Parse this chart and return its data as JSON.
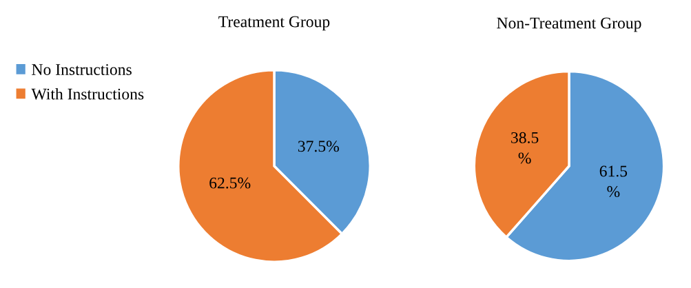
{
  "chart_data": [
    {
      "type": "pie",
      "title": "Treatment Group",
      "categories": [
        "No Instructions",
        "With Instructions"
      ],
      "values": [
        37.5,
        62.5
      ],
      "colors": [
        "#5b9bd5",
        "#ed7d31"
      ],
      "value_labels": [
        "37.5%",
        "62.5%"
      ],
      "legend": "left"
    },
    {
      "type": "pie",
      "title": "Non-Treatment Group",
      "categories": [
        null,
        null
      ],
      "values": [
        61.5,
        38.5
      ],
      "colors": [
        "#5b9bd5",
        "#ed7d31"
      ],
      "value_labels": [
        "61.5\n%",
        "38.5\n%"
      ],
      "legend": false
    }
  ]
}
